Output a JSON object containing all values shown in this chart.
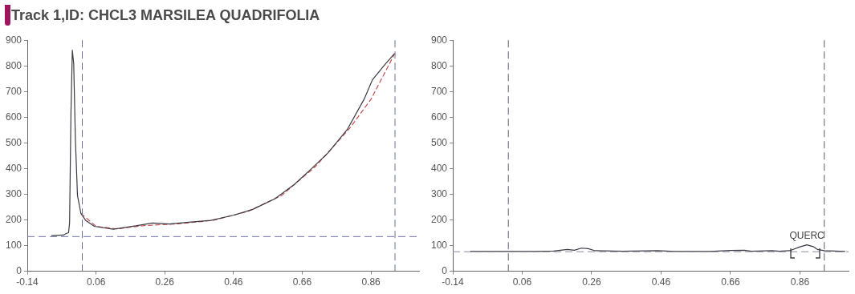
{
  "chart_data": [
    {
      "type": "line",
      "title": "Track 1,ID: CHCL3 MARSILEA QUADRIFOLIA",
      "xlim": [
        -0.14,
        1.0
      ],
      "xticks": [
        -0.14,
        0.06,
        0.26,
        0.46,
        0.66,
        0.86
      ],
      "ylim": [
        0,
        900
      ],
      "yticks": [
        0,
        100,
        200,
        300,
        400,
        500,
        600,
        700,
        800,
        900
      ],
      "grid": false,
      "legend": false,
      "series": [
        {
          "color": "#3a3a44",
          "x": [
            -0.07,
            -0.035,
            -0.027,
            -0.02,
            -0.017,
            -0.013,
            -0.009,
            -0.005,
            0.0,
            0.006,
            0.016,
            0.03,
            0.055,
            0.11,
            0.176,
            0.224,
            0.273,
            0.33,
            0.394,
            0.459,
            0.516,
            0.58,
            0.637,
            0.685,
            0.735,
            0.791,
            0.84,
            0.864,
            0.896,
            0.928
          ],
          "values": [
            139,
            141,
            147,
            150,
            188,
            616,
            861,
            809,
            509,
            295,
            225,
            198,
            175,
            164,
            177,
            188,
            184,
            191,
            198,
            218,
            241,
            282,
            338,
            397,
            461,
            552,
            670,
            745,
            798,
            847
          ]
        },
        {
          "color": "#c8504f",
          "line_style": "dashed",
          "x": [
            0.016,
            0.06,
            0.12,
            0.2,
            0.3,
            0.4,
            0.5,
            0.6,
            0.7,
            0.8,
            0.86,
            0.93
          ],
          "values": [
            225,
            175,
            165,
            178,
            185,
            198,
            232,
            295,
            410,
            560,
            670,
            850
          ]
        }
      ],
      "ref_lines": [
        {
          "axis": "x",
          "value": 0.02,
          "color": "#6b6fa0",
          "line_style": "dashed"
        },
        {
          "axis": "x",
          "value": 0.93,
          "color": "#6b6fa0",
          "line_style": "dashed"
        },
        {
          "axis": "y",
          "value": 135,
          "color": "#6b6fa0",
          "line_style": "dashed"
        }
      ]
    },
    {
      "type": "line",
      "xlim": [
        -0.14,
        1.0
      ],
      "xticks": [
        -0.14,
        0.06,
        0.26,
        0.46,
        0.66,
        0.86
      ],
      "ylim": [
        0,
        900
      ],
      "yticks": [
        0,
        100,
        200,
        300,
        400,
        500,
        600,
        700,
        800,
        900
      ],
      "grid": false,
      "legend": false,
      "series": [
        {
          "color": "#3a3a44",
          "x": [
            -0.09,
            0.0,
            0.1,
            0.15,
            0.19,
            0.21,
            0.23,
            0.25,
            0.27,
            0.35,
            0.45,
            0.5,
            0.6,
            0.66,
            0.7,
            0.72,
            0.78,
            0.8,
            0.83,
            0.86,
            0.88,
            0.9,
            0.91,
            0.93,
            0.99
          ],
          "values": [
            77,
            77,
            77,
            79,
            85,
            82,
            90,
            88,
            80,
            78,
            80,
            77,
            77,
            81,
            82,
            78,
            80,
            78,
            80,
            95,
            103,
            95,
            85,
            80,
            77
          ]
        }
      ],
      "ref_lines": [
        {
          "axis": "x",
          "value": 0.02,
          "color": "#5a5a70",
          "line_style": "dashed"
        },
        {
          "axis": "x",
          "value": 0.93,
          "color": "#5a5a70",
          "line_style": "dashed"
        },
        {
          "axis": "y",
          "value": 76,
          "color": "#8a8aa0",
          "line_style": "dashed"
        }
      ],
      "annotations": [
        {
          "text": "QUERC",
          "x": 0.88,
          "y": 103
        }
      ]
    }
  ]
}
